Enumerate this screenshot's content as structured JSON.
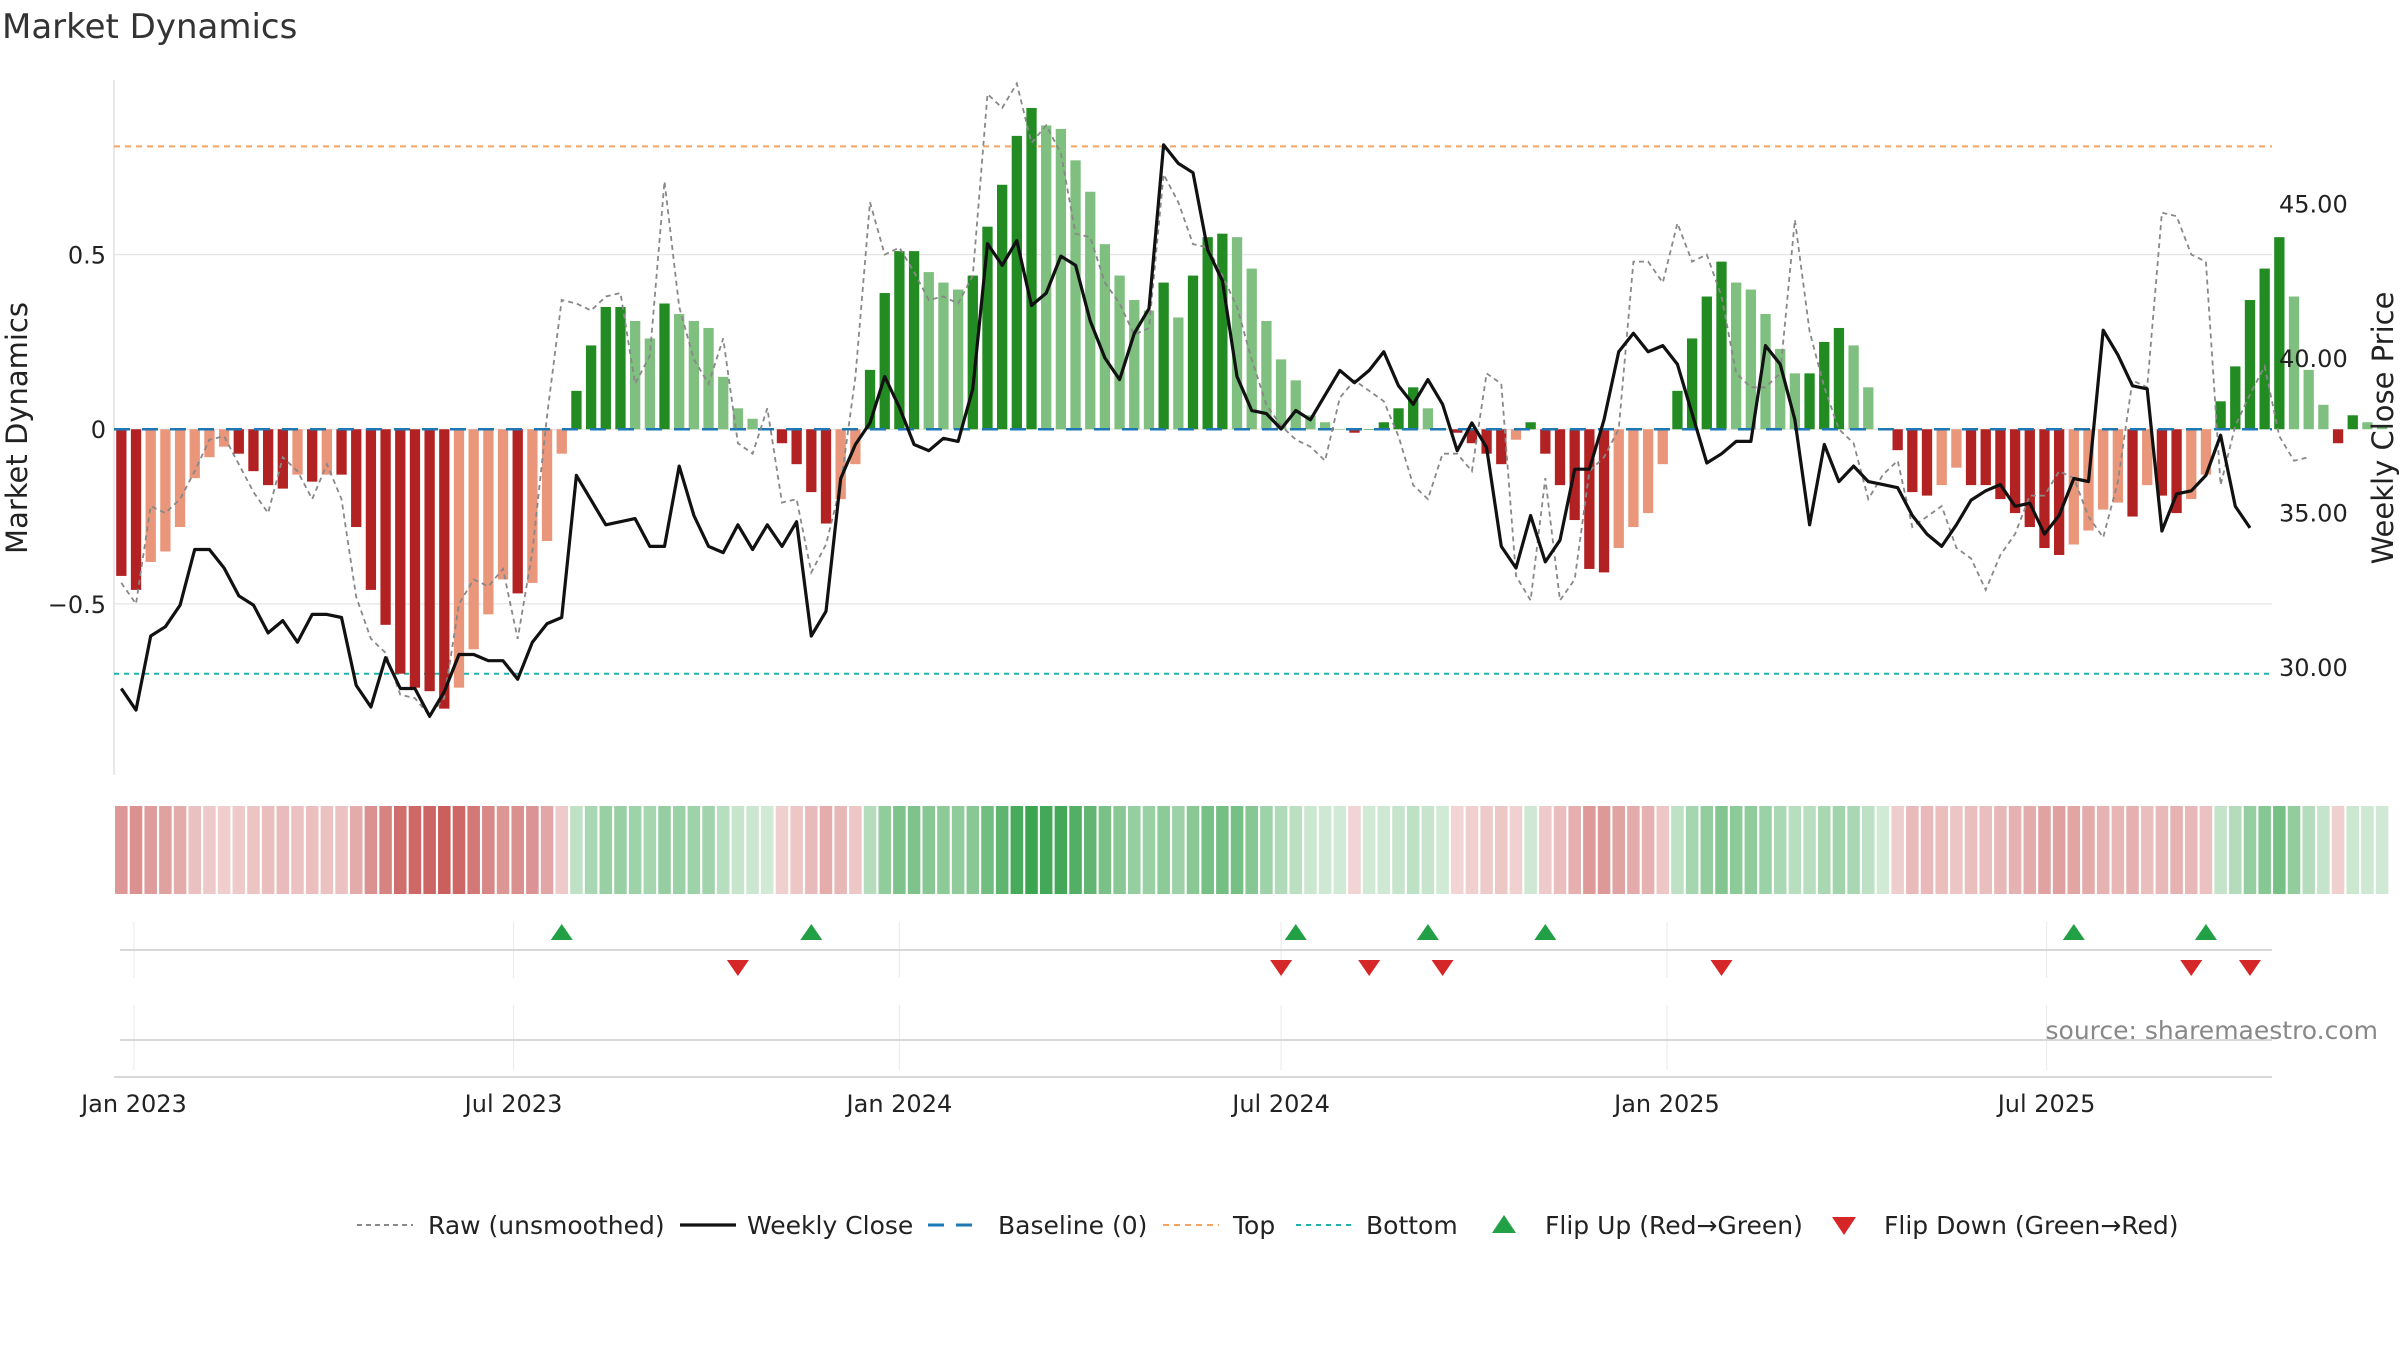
{
  "title": "Market Dynamics",
  "source": "source: sharemaestro.com",
  "colors": {
    "bar_red_strong": "#b22222",
    "bar_red_weak": "#e9967a",
    "bar_green_strong": "#228b22",
    "bar_green_weak": "#7fbf7f",
    "top_line": "#f4a460",
    "bottom_line": "#20b2aa",
    "baseline": "#1f77b4",
    "close_line": "#111111",
    "raw_line": "#888888",
    "flip_up": "#22a045",
    "flip_down": "#d62728",
    "grid": "#e6e6e6"
  },
  "chart_data": {
    "type": "bar",
    "title": "Market Dynamics",
    "ylabel": "Market Dynamics",
    "ylabel_right": "Weekly Close Price",
    "ylim": [
      -0.99,
      1.0
    ],
    "ylim_right": [
      26.5,
      49.0
    ],
    "yticks": [
      -0.5,
      0,
      0.5
    ],
    "ytick_labels": [
      "−0.5",
      "0",
      "0.5"
    ],
    "yticks_right": [
      30,
      35,
      40,
      45
    ],
    "ytick_labels_right": [
      "30.00",
      "35.00",
      "40.00",
      "45.00"
    ],
    "top": 0.81,
    "bottom": -0.7,
    "baseline": 0,
    "x_start": "2022-12-26",
    "x_end": "2025-10-13",
    "x_step_days": 7,
    "xticks": [
      {
        "date": "2023-01-01",
        "label": "Jan 2023"
      },
      {
        "date": "2023-07-01",
        "label": "Jul 2023"
      },
      {
        "date": "2024-01-01",
        "label": "Jan 2024"
      },
      {
        "date": "2024-07-01",
        "label": "Jul 2024"
      },
      {
        "date": "2025-01-01",
        "label": "Jan 2025"
      },
      {
        "date": "2025-07-01",
        "label": "Jul 2025"
      }
    ],
    "grid": true,
    "legend_position": "bottom",
    "legend": [
      "Raw (unsmoothed)",
      "Weekly Close",
      "Baseline (0)",
      "Top",
      "Bottom",
      "Flip Up (Red→Green)",
      "Flip Down (Green→Red)"
    ],
    "series": [
      {
        "name": "Market Dynamics",
        "values": [
          -0.42,
          -0.46,
          -0.38,
          -0.35,
          -0.28,
          -0.14,
          -0.08,
          -0.05,
          -0.07,
          -0.12,
          -0.16,
          -0.17,
          -0.13,
          -0.15,
          -0.13,
          -0.13,
          -0.28,
          -0.46,
          -0.56,
          -0.7,
          -0.74,
          -0.75,
          -0.8,
          -0.74,
          -0.63,
          -0.53,
          -0.43,
          -0.47,
          -0.44,
          -0.32,
          -0.07,
          0.11,
          0.24,
          0.35,
          0.35,
          0.31,
          0.26,
          0.36,
          0.33,
          0.31,
          0.29,
          0.15,
          0.06,
          0.03,
          0.0,
          -0.04,
          -0.1,
          -0.18,
          -0.27,
          -0.2,
          -0.1,
          0.17,
          0.39,
          0.51,
          0.51,
          0.45,
          0.42,
          0.4,
          0.44,
          0.58,
          0.7,
          0.84,
          0.92,
          0.87,
          0.86,
          0.77,
          0.68,
          0.53,
          0.44,
          0.37,
          0.34,
          0.42,
          0.32,
          0.44,
          0.55,
          0.56,
          0.55,
          0.46,
          0.31,
          0.2,
          0.14,
          0.04,
          0.02,
          0.0,
          -0.01,
          0.0,
          0.02,
          0.06,
          0.12,
          0.06,
          0.0,
          -0.01,
          -0.04,
          -0.07,
          -0.1,
          -0.03,
          0.02,
          -0.07,
          -0.16,
          -0.26,
          -0.4,
          -0.41,
          -0.34,
          -0.28,
          -0.24,
          -0.1,
          0.11,
          0.26,
          0.38,
          0.48,
          0.42,
          0.4,
          0.33,
          0.23,
          0.16,
          0.16,
          0.25,
          0.29,
          0.24,
          0.12,
          0.0,
          -0.06,
          -0.18,
          -0.19,
          -0.16,
          -0.11,
          -0.16,
          -0.16,
          -0.2,
          -0.24,
          -0.28,
          -0.34,
          -0.36,
          -0.33,
          -0.29,
          -0.23,
          -0.21,
          -0.25,
          -0.16,
          -0.19,
          -0.24,
          -0.2,
          -0.13,
          0.08,
          0.18,
          0.37,
          0.46,
          0.55,
          0.38,
          0.17,
          0.07,
          -0.04,
          0.04,
          0.02,
          0.01
        ]
      },
      {
        "name": "Weekly Close",
        "axis": "right",
        "values": [
          29.3,
          28.6,
          31.0,
          31.3,
          32.0,
          33.8,
          33.8,
          33.2,
          32.3,
          32.0,
          31.1,
          31.5,
          30.8,
          31.7,
          31.7,
          31.6,
          29.4,
          28.7,
          30.3,
          29.3,
          29.3,
          28.4,
          29.2,
          30.4,
          30.4,
          30.2,
          30.2,
          29.6,
          30.8,
          31.4,
          31.6,
          36.2,
          35.4,
          34.6,
          34.7,
          34.8,
          33.9,
          33.9,
          36.5,
          34.9,
          33.9,
          33.7,
          34.6,
          33.8,
          34.6,
          33.9,
          34.7,
          31.0,
          31.8,
          36.1,
          37.2,
          37.9,
          39.4,
          38.4,
          37.2,
          37.0,
          37.4,
          37.3,
          39.0,
          43.7,
          43.0,
          43.8,
          41.7,
          42.1,
          43.3,
          43.0,
          41.2,
          40.0,
          39.3,
          40.8,
          41.6,
          46.9,
          46.3,
          46.0,
          43.5,
          42.5,
          39.4,
          38.3,
          38.2,
          37.7,
          38.3,
          38.0,
          38.8,
          39.6,
          39.2,
          39.6,
          40.2,
          39.1,
          38.5,
          39.3,
          38.5,
          37.0,
          37.9,
          37.1,
          33.9,
          33.2,
          34.9,
          33.4,
          34.1,
          36.4,
          36.4,
          38.0,
          40.2,
          40.8,
          40.2,
          40.4,
          39.8,
          38.2,
          36.6,
          36.9,
          37.3,
          37.3,
          40.4,
          39.8,
          38.0,
          34.6,
          37.2,
          36.0,
          36.5,
          36.0,
          35.9,
          35.8,
          34.9,
          34.3,
          33.9,
          34.6,
          35.4,
          35.7,
          35.9,
          35.2,
          35.3,
          34.3,
          34.9,
          36.1,
          36.0,
          40.9,
          40.1,
          39.1,
          39.0,
          34.4,
          35.6,
          35.7,
          36.2,
          37.5,
          35.2,
          34.5
        ]
      },
      {
        "name": "Raw (unsmoothed)",
        "values": [
          -0.44,
          -0.5,
          -0.22,
          -0.24,
          -0.2,
          -0.12,
          -0.03,
          -0.02,
          -0.1,
          -0.18,
          -0.24,
          -0.08,
          -0.12,
          -0.2,
          -0.1,
          -0.2,
          -0.48,
          -0.6,
          -0.64,
          -0.76,
          -0.77,
          -0.82,
          -0.77,
          -0.5,
          -0.43,
          -0.45,
          -0.4,
          -0.6,
          -0.35,
          0.04,
          0.37,
          0.36,
          0.34,
          0.38,
          0.39,
          0.13,
          0.21,
          0.71,
          0.35,
          0.2,
          0.13,
          0.26,
          -0.04,
          -0.07,
          0.06,
          -0.21,
          -0.2,
          -0.41,
          -0.33,
          -0.16,
          0.15,
          0.65,
          0.5,
          0.52,
          0.45,
          0.37,
          0.38,
          0.36,
          0.44,
          0.96,
          0.92,
          0.99,
          0.82,
          0.87,
          0.79,
          0.56,
          0.55,
          0.42,
          0.36,
          0.27,
          0.29,
          0.73,
          0.65,
          0.53,
          0.52,
          0.44,
          0.35,
          0.2,
          0.07,
          0.01,
          -0.03,
          -0.05,
          -0.09,
          0.09,
          0.14,
          0.11,
          0.08,
          -0.02,
          -0.16,
          -0.2,
          -0.07,
          -0.07,
          -0.12,
          0.16,
          0.13,
          -0.42,
          -0.49,
          -0.14,
          -0.49,
          -0.43,
          -0.12,
          -0.08,
          -0.0,
          0.48,
          0.48,
          0.42,
          0.59,
          0.48,
          0.5,
          0.38,
          0.16,
          0.12,
          0.12,
          0.16,
          0.6,
          0.28,
          0.12,
          -0.0,
          -0.04,
          -0.2,
          -0.13,
          -0.09,
          -0.28,
          -0.25,
          -0.22,
          -0.34,
          -0.37,
          -0.46,
          -0.36,
          -0.3,
          -0.19,
          -0.19,
          -0.12,
          -0.14,
          -0.25,
          -0.31,
          -0.15,
          0.14,
          0.12,
          0.62,
          0.61,
          0.5,
          0.48,
          -0.16,
          0.01,
          0.1,
          0.18,
          -0.02,
          -0.09,
          -0.08
        ]
      }
    ],
    "flip_up_dates": [
      "2023-07-24",
      "2023-11-20",
      "2024-07-08",
      "2024-09-09",
      "2024-11-04",
      "2025-07-14",
      "2025-09-15"
    ],
    "flip_down_dates": [
      "2023-10-16",
      "2024-07-01",
      "2024-08-12",
      "2024-09-16",
      "2025-01-27",
      "2025-09-08",
      "2025-10-06"
    ]
  }
}
